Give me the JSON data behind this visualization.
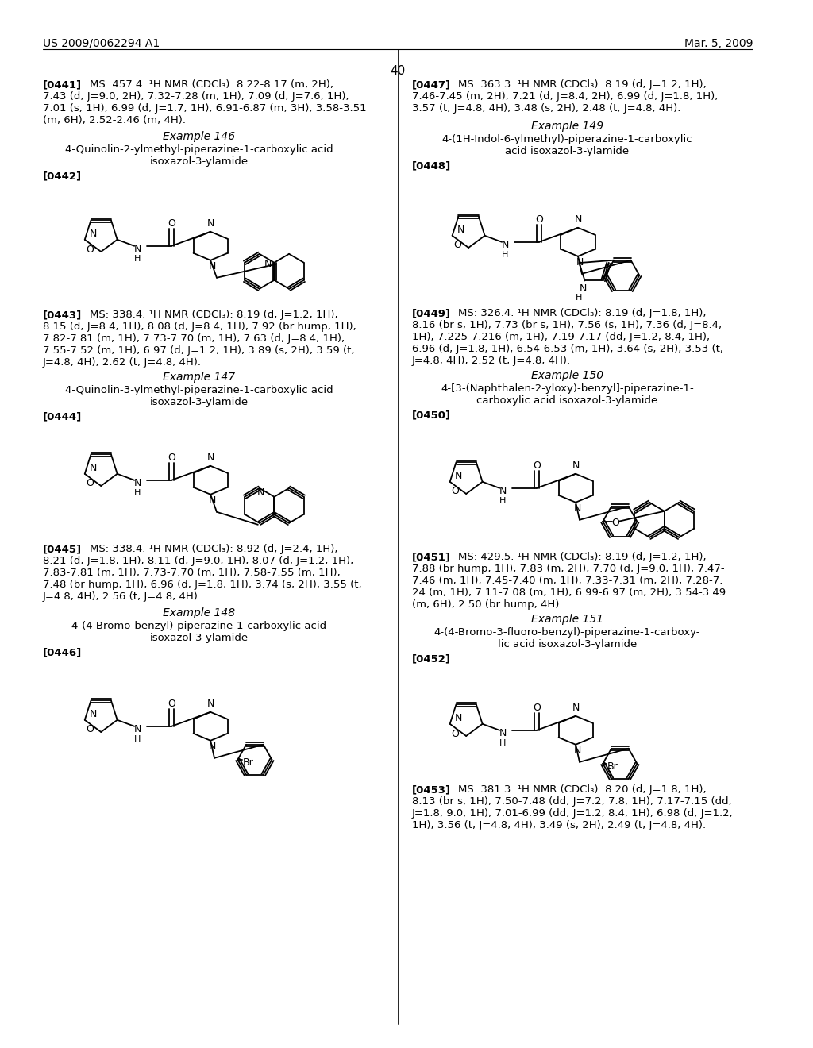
{
  "page_header_left": "US 2009/0062294 A1",
  "page_header_right": "Mar. 5, 2009",
  "page_number": "40",
  "bg": "#ffffff"
}
